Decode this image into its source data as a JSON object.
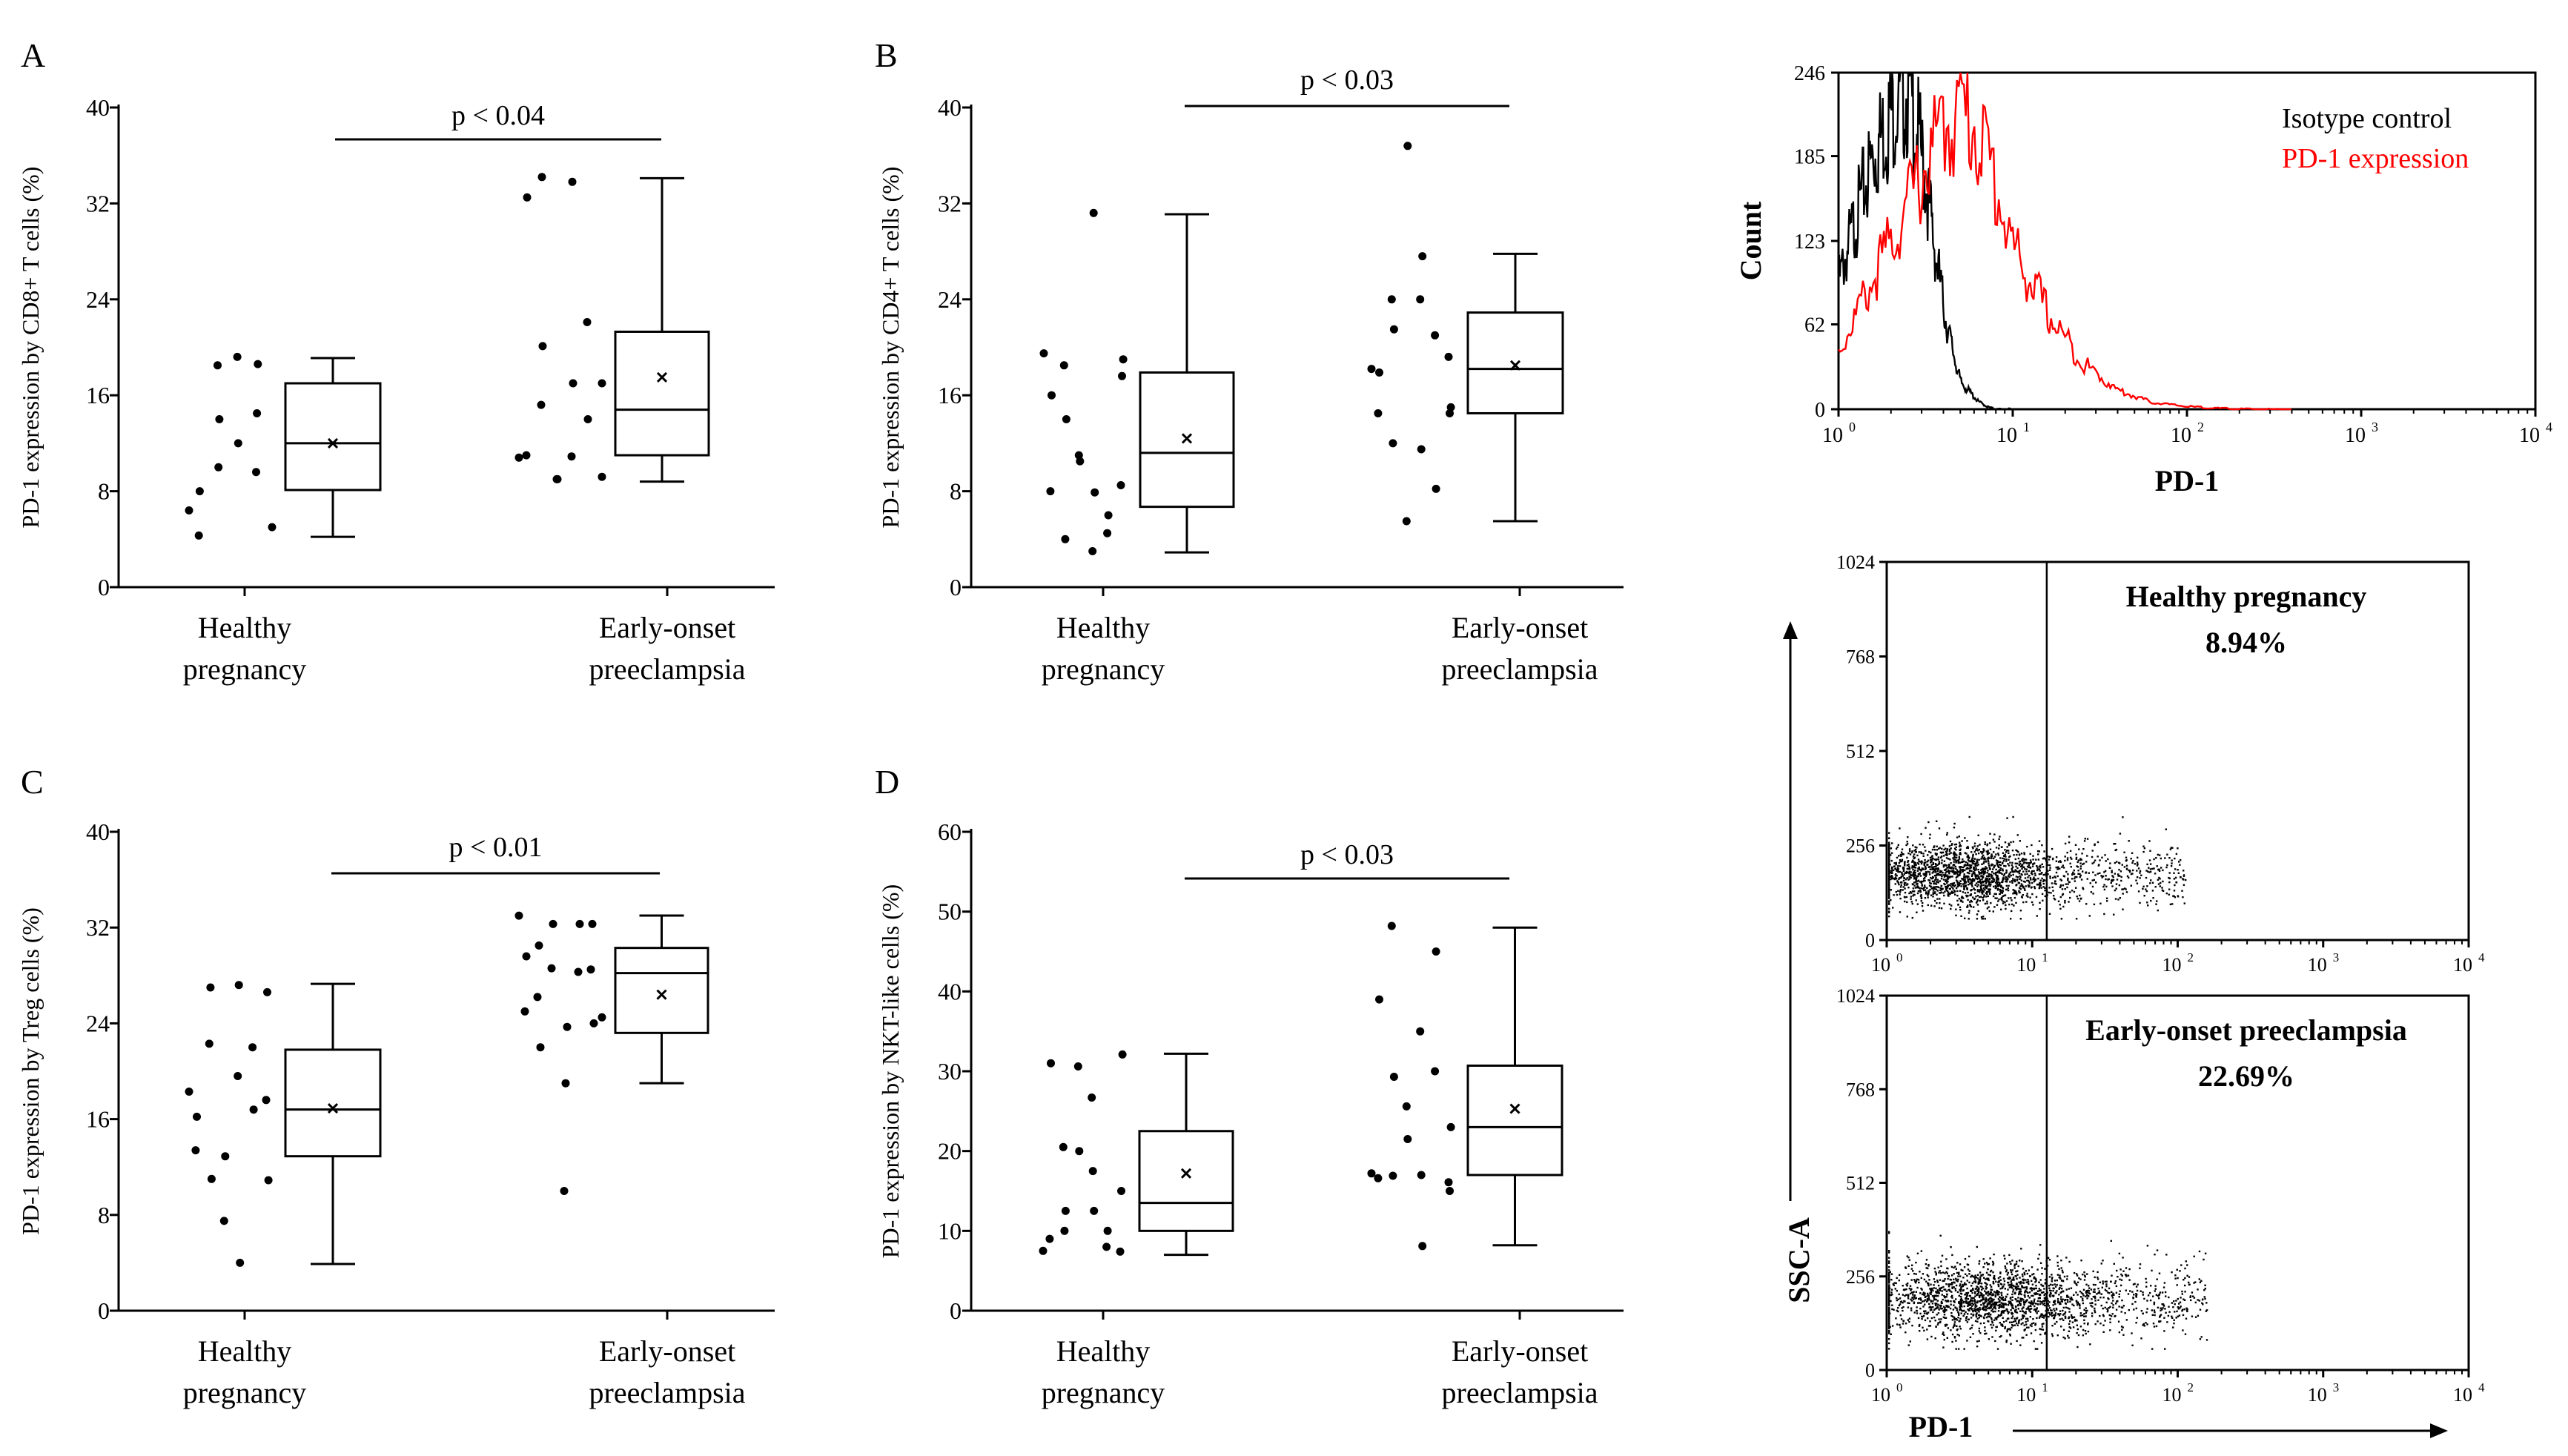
{
  "chart_data": [
    {
      "panel": "A",
      "type": "box",
      "ylabel": "PD-1 expression by CD8+ T cells (%)",
      "ylim": [
        0,
        40
      ],
      "yticks": [
        0,
        8,
        16,
        24,
        32,
        40
      ],
      "groups": [
        {
          "label1": "Healthy",
          "label2": "pregnancy",
          "points": [
            6.4,
            4.3,
            8,
            18.5,
            10,
            14,
            19.2,
            12,
            9.6,
            14.5,
            18.6,
            5
          ],
          "box": {
            "min": 4.2,
            "q1": 8.1,
            "median": 12,
            "q3": 17,
            "max": 19.1,
            "mean": 12
          }
        },
        {
          "label1": "Early-onset",
          "label2": "preeclampsia",
          "points": [
            10.8,
            32.5,
            11,
            20.1,
            34.2,
            15.2,
            9,
            9,
            17,
            33.8,
            10.9,
            14,
            22.1,
            17,
            9.2
          ],
          "box": {
            "min": 8.8,
            "q1": 11,
            "median": 14.8,
            "q3": 21.3,
            "max": 34.1,
            "mean": 17.5
          }
        }
      ],
      "significance": "p < 0.04"
    },
    {
      "panel": "B",
      "type": "box",
      "ylabel": "PD-1 expression by CD4+ T cells (%)",
      "ylim": [
        0,
        40
      ],
      "yticks": [
        0,
        8,
        16,
        24,
        32,
        40
      ],
      "groups": [
        {
          "label1": "Healthy",
          "label2": "pregnancy",
          "points": [
            19.5,
            16,
            8,
            14,
            4,
            18.5,
            10.5,
            11,
            7.9,
            31.2,
            3,
            6,
            4.5,
            19,
            17.6,
            8.5
          ],
          "box": {
            "min": 2.9,
            "q1": 6.7,
            "median": 11.2,
            "q3": 17.9,
            "max": 31.1,
            "mean": 12.4
          }
        },
        {
          "label1": "Early-onset",
          "label2": "preeclampsia",
          "points": [
            18.2,
            17.9,
            14.5,
            21.5,
            12,
            24,
            36.8,
            5.5,
            27.6,
            11.5,
            24,
            8.2,
            21,
            15,
            14.5,
            19.2
          ],
          "box": {
            "min": 5.5,
            "q1": 14.5,
            "median": 18.2,
            "q3": 22.9,
            "max": 27.8,
            "mean": 18.5
          }
        }
      ],
      "significance": "p < 0.03"
    },
    {
      "panel": "C",
      "type": "box",
      "ylabel": "PD-1 expression by Treg cells (%)",
      "ylim": [
        0,
        40
      ],
      "yticks": [
        0,
        8,
        16,
        24,
        32,
        40
      ],
      "groups": [
        {
          "label1": "Healthy",
          "label2": "pregnancy",
          "points": [
            18.3,
            16.2,
            13.4,
            11,
            27,
            22.3,
            12.9,
            7.5,
            4,
            27.2,
            19.6,
            16.8,
            22,
            10.9,
            26.6,
            17.6
          ],
          "box": {
            "min": 3.9,
            "q1": 12.9,
            "median": 16.8,
            "q3": 21.8,
            "max": 27.3,
            "mean": 16.9
          }
        },
        {
          "label1": "Early-onset",
          "label2": "preeclampsia",
          "points": [
            33,
            29.6,
            25,
            22,
            30.5,
            26.2,
            32.3,
            28.6,
            23.7,
            19,
            10,
            32.3,
            28.3,
            24,
            32.3,
            28.5,
            24.5
          ],
          "box": {
            "min": 19,
            "q1": 23.2,
            "median": 28.2,
            "q3": 30.3,
            "max": 33,
            "mean": 26.4
          }
        }
      ],
      "significance": "p < 0.01"
    },
    {
      "panel": "D",
      "type": "box",
      "ylabel": "PD-1 expression by NKT-like cells (%)",
      "ylim": [
        0,
        60
      ],
      "yticks": [
        0,
        10,
        20,
        30,
        40,
        50,
        60
      ],
      "groups": [
        {
          "label1": "Healthy",
          "label2": "pregnancy",
          "points": [
            7.5,
            31,
            9,
            12.5,
            10,
            20.5,
            20,
            30.6,
            12.5,
            17.5,
            26.7,
            10,
            8,
            32.1,
            15,
            7.4
          ],
          "box": {
            "min": 7,
            "q1": 10,
            "median": 13.5,
            "q3": 22.5,
            "max": 32.2,
            "mean": 17.2
          }
        },
        {
          "label1": "Early-onset",
          "label2": "preeclampsia",
          "points": [
            17.2,
            39,
            16.6,
            29.3,
            16.9,
            48.2,
            21.5,
            25.6,
            8.1,
            17,
            35,
            45,
            30,
            23,
            15,
            16.1
          ],
          "box": {
            "min": 8.2,
            "q1": 17,
            "median": 23,
            "q3": 30.7,
            "max": 48,
            "mean": 25.3
          }
        }
      ],
      "significance": "p < 0.03"
    },
    {
      "panel": "histogram",
      "type": "line",
      "xlabel": "PD-1",
      "ylabel": "Count",
      "yticks": [
        "0",
        "62",
        "123",
        "185",
        "246"
      ],
      "xticks": [
        "10",
        "10",
        "10",
        "10",
        "10"
      ],
      "xtick_exponents": [
        "0",
        "1",
        "2",
        "3",
        "4"
      ],
      "x_log_range": [
        0,
        4
      ],
      "y_range": [
        0,
        246
      ],
      "series": [
        {
          "name": "Isotype control",
          "color": "#000000",
          "x": [
            0,
            0.1,
            0.2,
            0.3,
            0.35,
            0.4,
            0.45,
            0.5,
            0.55,
            0.62,
            0.7,
            0.8,
            0.85,
            0.9,
            1.0
          ],
          "y": [
            92,
            140,
            185,
            215,
            232,
            230,
            205,
            168,
            120,
            62,
            20,
            6,
            2,
            0,
            0
          ]
        },
        {
          "name": "PD-1 expression",
          "color": "#ff0000",
          "x": [
            0,
            0.2,
            0.4,
            0.6,
            0.7,
            0.8,
            0.9,
            1.0,
            1.2,
            1.4,
            1.6,
            1.8,
            2.0,
            2.2,
            2.4,
            2.6
          ],
          "y": [
            42,
            95,
            150,
            205,
            218,
            205,
            165,
            118,
            70,
            34,
            14,
            5,
            2,
            0.5,
            0,
            0
          ]
        }
      ]
    },
    {
      "panel": "scatter-healthy",
      "type": "scatter",
      "title": "Healthy pregnancy",
      "percent": "8.94%",
      "yticks": [
        "0",
        "256",
        "512",
        "768",
        "1024"
      ],
      "xticks": [
        "10",
        "10",
        "10",
        "10",
        "10"
      ],
      "xtick_exponents": [
        "0",
        "1",
        "2",
        "3",
        "4"
      ],
      "x_log_range": [
        0,
        4
      ],
      "y_range": [
        0,
        1024
      ],
      "gate_x_log": 1.1,
      "cluster": {
        "x_log_center": 0.45,
        "y_center": 180,
        "spread_x": 0.35,
        "spread_y": 45,
        "tail_x_log_max": 2.05
      }
    },
    {
      "panel": "scatter-preeclampsia",
      "type": "scatter",
      "title": "Early-onset preeclampsia",
      "percent": "22.69%",
      "xlabel": "PD-1",
      "ylabel": "SSC-A",
      "yticks": [
        "0",
        "256",
        "512",
        "768",
        "1024"
      ],
      "xticks": [
        "10",
        "10",
        "10",
        "10",
        "10"
      ],
      "xtick_exponents": [
        "0",
        "1",
        "2",
        "3",
        "4"
      ],
      "x_log_range": [
        0,
        4
      ],
      "y_range": [
        0,
        1024
      ],
      "gate_x_log": 1.1,
      "cluster": {
        "x_log_center": 0.6,
        "y_center": 195,
        "spread_x": 0.45,
        "spread_y": 50,
        "tail_x_log_max": 2.2
      }
    }
  ],
  "legend": {
    "isotype": "Isotype control",
    "pd1": "PD-1 expression",
    "isotype_color": "#000000",
    "pd1_color": "#ff0000"
  }
}
